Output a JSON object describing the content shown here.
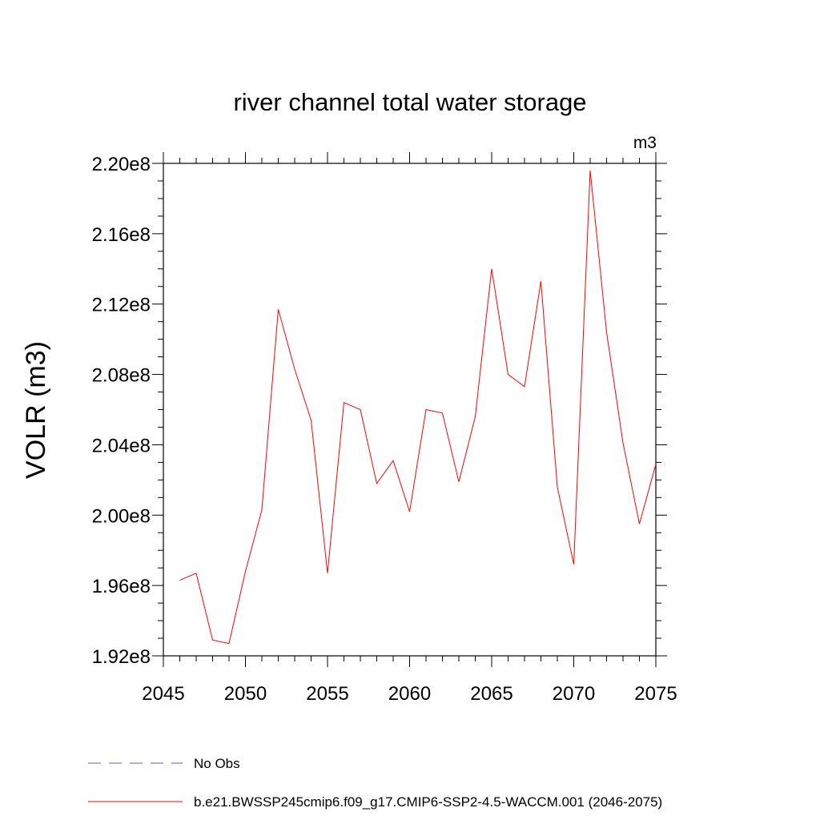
{
  "chart_data": {
    "type": "line",
    "title": "river channel total water storage",
    "units_label": "m3",
    "xlabel": "",
    "ylabel": "VOLR  (m3)",
    "xlim": [
      2045,
      2075
    ],
    "ylim": [
      192000000.0,
      220000000.0
    ],
    "x_ticks": [
      2045,
      2050,
      2055,
      2060,
      2065,
      2070,
      2075
    ],
    "x_tick_labels": [
      "2045",
      "2050",
      "2055",
      "2060",
      "2065",
      "2070",
      "2075"
    ],
    "y_ticks": [
      192000000.0,
      196000000.0,
      200000000.0,
      204000000.0,
      208000000.0,
      212000000.0,
      216000000.0,
      220000000.0
    ],
    "y_tick_labels": [
      "1.92e8",
      "1.96e8",
      "2.00e8",
      "2.04e8",
      "2.08e8",
      "2.12e8",
      "2.16e8",
      "2.20e8"
    ],
    "series": [
      {
        "name": "b.e21.BWSSP245cmip6.f09_g17.CMIP6-SSP2-4.5-WACCM.001 (2046-2075)",
        "color": "#ff0000",
        "dash": "solid",
        "x": [
          2046,
          2047,
          2048,
          2049,
          2050,
          2051,
          2052,
          2053,
          2054,
          2055,
          2056,
          2057,
          2058,
          2059,
          2060,
          2061,
          2062,
          2063,
          2064,
          2065,
          2066,
          2067,
          2068,
          2069,
          2070,
          2071,
          2072,
          2073,
          2074,
          2075
        ],
        "values": [
          196300000.0,
          196700000.0,
          192900000.0,
          192700000.0,
          196800000.0,
          200300000.0,
          211700000.0,
          208300000.0,
          205400000.0,
          196700000.0,
          206400000.0,
          206000000.0,
          201800000.0,
          203100000.0,
          200200000.0,
          206000000.0,
          205800000.0,
          201900000.0,
          205600000.0,
          214000000.0,
          208000000.0,
          207300000.0,
          213300000.0,
          201600000.0,
          197200000.0,
          219600000.0,
          210400000.0,
          204100000.0,
          199500000.0,
          202900000.0
        ]
      }
    ],
    "legend": [
      {
        "label": "No Obs",
        "color": "#6a5acd",
        "dash": "dashed"
      },
      {
        "label": "b.e21.BWSSP245cmip6.f09_g17.CMIP6-SSP2-4.5-WACCM.001 (2046-2075)",
        "color": "#ff0000",
        "dash": "solid"
      }
    ],
    "grid": false,
    "legend_position": "bottom"
  }
}
